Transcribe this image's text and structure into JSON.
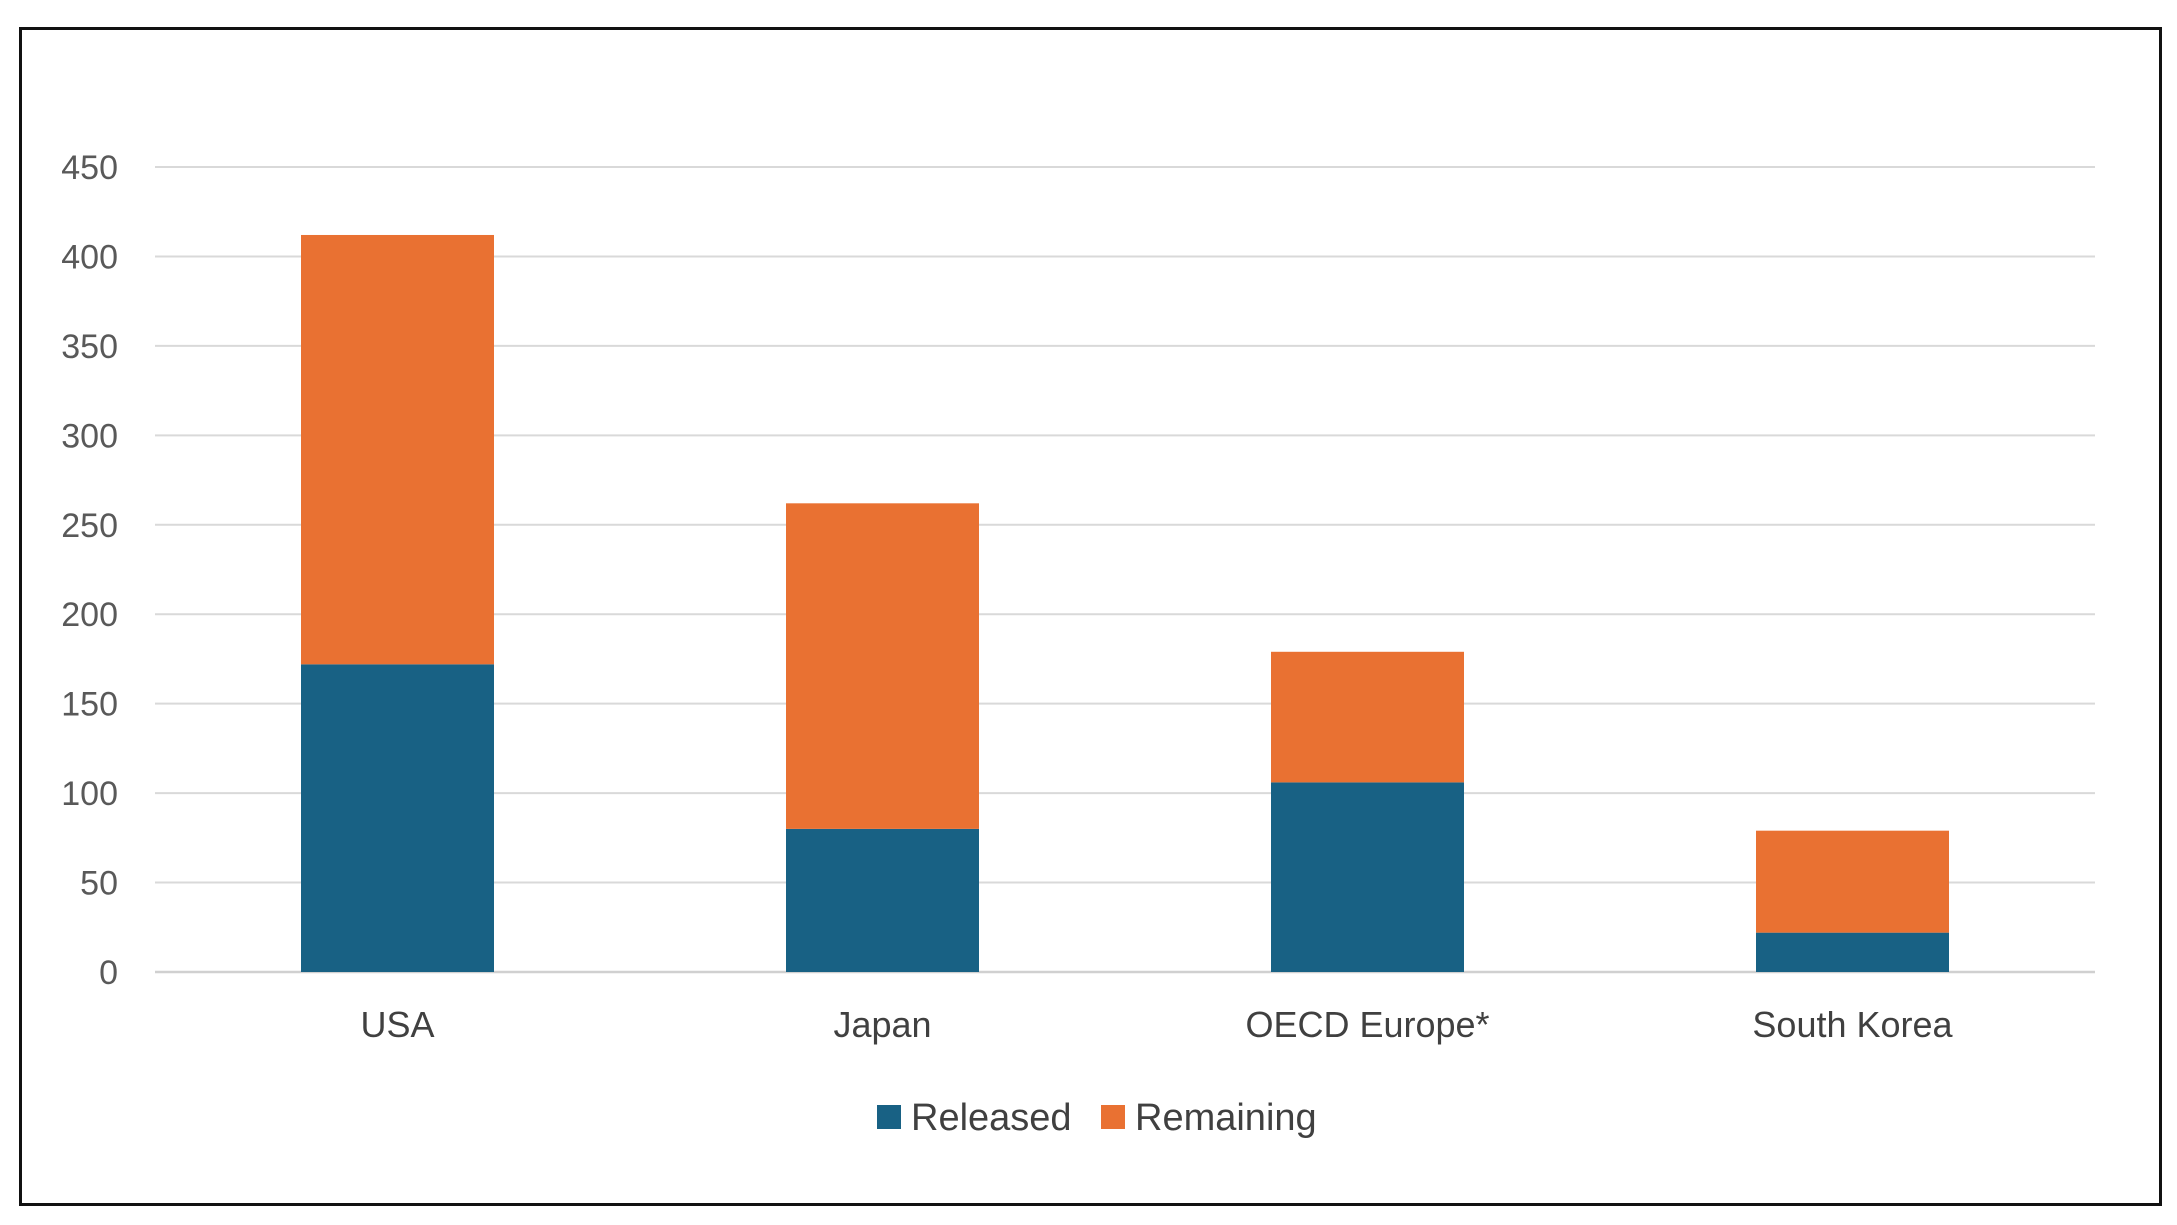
{
  "chart_data": {
    "type": "bar",
    "stacked": true,
    "title": "",
    "xlabel": "",
    "ylabel": "",
    "categories": [
      "USA",
      "Japan",
      "OECD Europe*",
      "South Korea"
    ],
    "series": [
      {
        "name": "Released",
        "values": [
          172,
          80,
          106,
          22
        ],
        "color": "#186184"
      },
      {
        "name": "Remaining",
        "values": [
          240,
          182,
          73,
          57
        ],
        "color": "#E97132"
      }
    ],
    "ylim": [
      0,
      450
    ],
    "yticks": [
      0,
      50,
      100,
      150,
      200,
      250,
      300,
      350,
      400,
      450
    ],
    "grid": true,
    "legend_position": "bottom"
  }
}
